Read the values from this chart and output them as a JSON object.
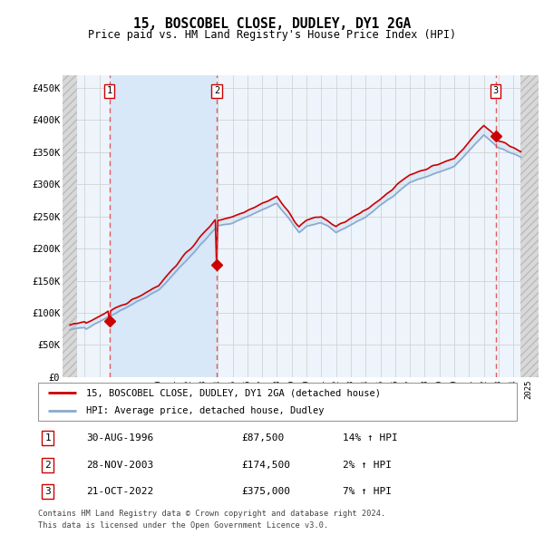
{
  "title": "15, BOSCOBEL CLOSE, DUDLEY, DY1 2GA",
  "subtitle": "Price paid vs. HM Land Registry's House Price Index (HPI)",
  "ylim": [
    0,
    470000
  ],
  "yticks": [
    0,
    50000,
    100000,
    150000,
    200000,
    250000,
    300000,
    350000,
    400000,
    450000
  ],
  "ytick_labels": [
    "£0",
    "£50K",
    "£100K",
    "£150K",
    "£200K",
    "£250K",
    "£300K",
    "£350K",
    "£400K",
    "£450K"
  ],
  "sales": [
    {
      "year": 1996.67,
      "price": 87500,
      "label": "1"
    },
    {
      "year": 2003.92,
      "price": 174500,
      "label": "2"
    },
    {
      "year": 2022.8,
      "price": 375000,
      "label": "3"
    }
  ],
  "sale_label_texts": [
    {
      "num": "1",
      "date": "30-AUG-1996",
      "price": "£87,500",
      "pct": "14% ↑ HPI"
    },
    {
      "num": "2",
      "date": "28-NOV-2003",
      "price": "£174,500",
      "pct": "2% ↑ HPI"
    },
    {
      "num": "3",
      "date": "21-OCT-2022",
      "price": "£375,000",
      "pct": "7% ↑ HPI"
    }
  ],
  "legend_line1": "15, BOSCOBEL CLOSE, DUDLEY, DY1 2GA (detached house)",
  "legend_line2": "HPI: Average price, detached house, Dudley",
  "footer1": "Contains HM Land Registry data © Crown copyright and database right 2024.",
  "footer2": "This data is licensed under the Open Government Licence v3.0.",
  "price_line_color": "#cc0000",
  "hpi_line_color": "#88aacc",
  "highlight_fill_color": "#d8e8f8",
  "grid_color": "#cccccc",
  "dashed_line_color": "#dd4444",
  "background_plot": "#eef4fb",
  "hatch_fill": "#d8d8d8"
}
